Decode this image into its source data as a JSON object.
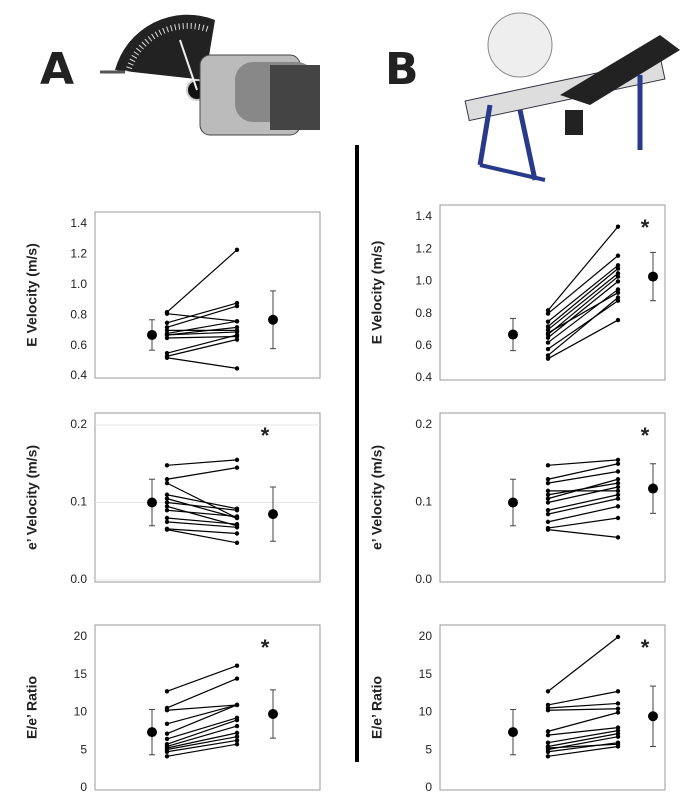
{
  "panel_labels": [
    "A",
    "B"
  ],
  "chart_data": [
    {
      "type": "paired",
      "ylabel": "E Velocity (m/s)",
      "ylim": [
        0.4,
        1.4
      ],
      "yticks": [
        0.4,
        0.6,
        0.8,
        {
          "value": 1,
          "label": "1.0"
        },
        1.2,
        1.4
      ],
      "pre_mean": 0.67,
      "pre_sd": 0.1,
      "post_mean": 0.77,
      "post_sd": 0.19,
      "pairs": [
        [
          0.52,
          0.45
        ],
        [
          0.53,
          0.64
        ],
        [
          0.55,
          0.67
        ],
        [
          0.65,
          0.66
        ],
        [
          0.67,
          0.69
        ],
        [
          0.67,
          0.72
        ],
        [
          0.68,
          0.76
        ],
        [
          0.7,
          0.7
        ],
        [
          0.72,
          0.86
        ],
        [
          0.75,
          0.88
        ],
        [
          0.81,
          0.76
        ],
        [
          0.82,
          1.23
        ]
      ]
    },
    {
      "type": "paired",
      "ylabel": "e’ Velocity (m/s)",
      "ylim": [
        0,
        0.2
      ],
      "yticks": [
        {
          "value": 0,
          "label": "0.0"
        },
        0.1,
        0.2
      ],
      "grid": true,
      "pre_mean": 0.1,
      "pre_sd": 0.03,
      "post_mean": 0.085,
      "post_sd": 0.035,
      "annotation": "*",
      "pairs": [
        [
          0.065,
          0.048
        ],
        [
          0.066,
          0.06
        ],
        [
          0.075,
          0.068
        ],
        [
          0.08,
          0.072
        ],
        [
          0.09,
          0.082
        ],
        [
          0.095,
          0.07
        ],
        [
          0.1,
          0.09
        ],
        [
          0.105,
          0.08
        ],
        [
          0.11,
          0.092
        ],
        [
          0.125,
          0.08
        ],
        [
          0.13,
          0.145
        ],
        [
          0.148,
          0.155
        ]
      ]
    },
    {
      "type": "paired",
      "ylabel": "E/e’ Ratio",
      "ylim": [
        0,
        20
      ],
      "yticks": [
        0,
        5,
        10,
        15,
        20
      ],
      "pre_mean": 7.4,
      "pre_sd": 3,
      "post_mean": 9.8,
      "post_sd": 3.2,
      "annotation": "*",
      "pairs": [
        [
          4.2,
          5.8
        ],
        [
          4.8,
          6.3
        ],
        [
          5.1,
          6.8
        ],
        [
          5.5,
          8.2
        ],
        [
          5.8,
          9
        ],
        [
          6.5,
          9.3
        ],
        [
          7.2,
          11
        ],
        [
          8.5,
          11
        ],
        [
          10.3,
          11
        ],
        [
          10.6,
          14.5
        ],
        [
          12.8,
          16.2
        ],
        [
          5.3,
          7.3
        ]
      ]
    },
    {
      "type": "paired",
      "ylabel": "E Velocity (m/s)",
      "ylim": [
        0.4,
        1.4
      ],
      "yticks": [
        0.4,
        0.6,
        0.8,
        {
          "value": 1,
          "label": "1.0"
        },
        1.2,
        1.4
      ],
      "pre_mean": 0.67,
      "pre_sd": 0.1,
      "post_mean": 1.03,
      "post_sd": 0.15,
      "annotation": "*",
      "pairs": [
        [
          0.52,
          0.76
        ],
        [
          0.54,
          0.9
        ],
        [
          0.58,
          0.88
        ],
        [
          0.62,
          0.95
        ],
        [
          0.65,
          1
        ],
        [
          0.67,
          1.03
        ],
        [
          0.68,
          0.93
        ],
        [
          0.7,
          1.05
        ],
        [
          0.72,
          1.08
        ],
        [
          0.75,
          1.1
        ],
        [
          0.8,
          1.16
        ],
        [
          0.82,
          1.34
        ]
      ]
    },
    {
      "type": "paired",
      "ylabel": "e’ Velocity (m/s)",
      "ylim": [
        0,
        0.2
      ],
      "yticks": [
        {
          "value": 0,
          "label": "0.0"
        },
        0.1,
        0.2
      ],
      "pre_mean": 0.1,
      "pre_sd": 0.03,
      "post_mean": 0.118,
      "post_sd": 0.032,
      "annotation": "*",
      "pairs": [
        [
          0.065,
          0.055
        ],
        [
          0.067,
          0.08
        ],
        [
          0.075,
          0.095
        ],
        [
          0.085,
          0.105
        ],
        [
          0.09,
          0.11
        ],
        [
          0.1,
          0.12
        ],
        [
          0.105,
          0.13
        ],
        [
          0.11,
          0.125
        ],
        [
          0.115,
          0.115
        ],
        [
          0.125,
          0.14
        ],
        [
          0.13,
          0.15
        ],
        [
          0.148,
          0.155
        ]
      ]
    },
    {
      "type": "paired",
      "ylabel": "E/e’ Ratio",
      "ylim": [
        0,
        20
      ],
      "yticks": [
        0,
        5,
        10,
        15,
        20
      ],
      "pre_mean": 7.4,
      "pre_sd": 3,
      "post_mean": 9.5,
      "post_sd": 4,
      "annotation": "*",
      "pairs": [
        [
          4.2,
          5.5
        ],
        [
          4.8,
          6
        ],
        [
          5.1,
          6.8
        ],
        [
          5.5,
          7.2
        ],
        [
          6,
          7.6
        ],
        [
          7,
          8
        ],
        [
          7.5,
          10
        ],
        [
          10.3,
          10.5
        ],
        [
          10.6,
          11.2
        ],
        [
          11,
          12.8
        ],
        [
          12.8,
          20
        ],
        [
          5.3,
          5.8
        ]
      ]
    }
  ]
}
